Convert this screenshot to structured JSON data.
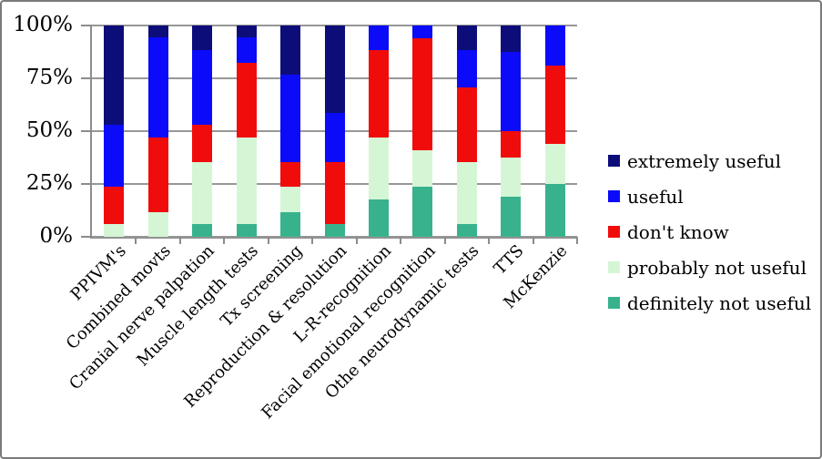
{
  "chart_data": {
    "type": "bar",
    "subtype": "stacked-100-percent",
    "categories": [
      "PPIVM's",
      "Combined movts",
      "Cranial nerve palpation",
      "Muscle length tests",
      "Tx screening",
      "Reproduction & resolution",
      "L-R-recognition",
      "Facial emotional recognition",
      "Othe neurodynamic tests",
      "TTS",
      "McKenzie"
    ],
    "series": [
      {
        "name": "definitely not useful",
        "color": "#38b28d",
        "values": [
          0,
          0,
          5.9,
          5.9,
          11.8,
          5.9,
          17.6,
          23.5,
          5.9,
          18.8,
          25.0
        ]
      },
      {
        "name": "probably not useful",
        "color": "#d5f6d5",
        "values": [
          5.9,
          11.8,
          29.4,
          41.2,
          11.8,
          0,
          29.4,
          17.6,
          29.4,
          18.8,
          18.8
        ]
      },
      {
        "name": "don't know",
        "color": "#f10c0c",
        "values": [
          17.6,
          35.3,
          17.6,
          35.3,
          11.8,
          29.4,
          41.2,
          52.9,
          35.3,
          12.5,
          37.4
        ]
      },
      {
        "name": "useful",
        "color": "#0b0bfa",
        "values": [
          29.4,
          47.1,
          35.3,
          11.8,
          41.2,
          23.5,
          11.8,
          6.0,
          17.6,
          37.4,
          18.8
        ]
      },
      {
        "name": "extremely useful",
        "color": "#0d0d7a",
        "values": [
          47.1,
          5.8,
          11.8,
          5.8,
          23.4,
          41.2,
          0,
          0,
          11.8,
          12.5,
          0
        ]
      }
    ],
    "y_tick_labels": [
      "100%",
      "75%",
      "50%",
      "25%",
      "0%"
    ],
    "y_tick_values": [
      100,
      75,
      50,
      25,
      0
    ],
    "ylim": [
      0,
      100
    ],
    "grid": true,
    "legend_position": "right",
    "legend_order": [
      "extremely useful",
      "useful",
      "don't know",
      "probably not useful",
      "definitely not useful"
    ]
  },
  "style_colors": {
    "gridline": "#979797",
    "axis": "#8c8c8c",
    "frame_border": "#7a7a7a",
    "background": "#ffffff",
    "text": "#000000"
  }
}
